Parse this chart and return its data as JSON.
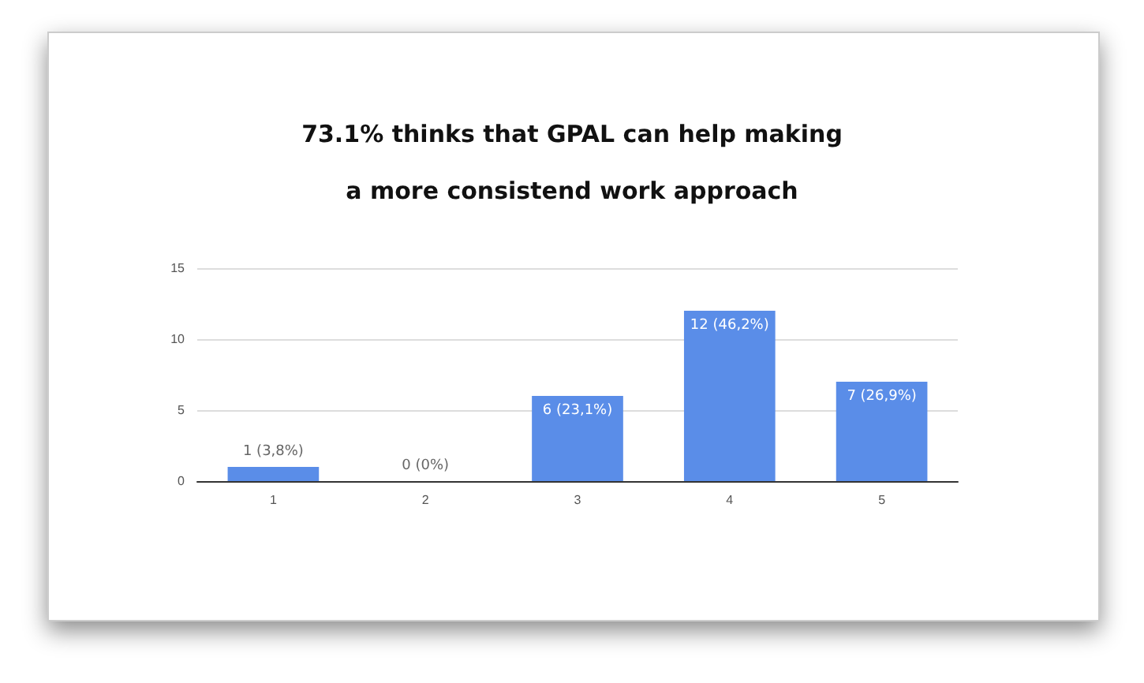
{
  "chart_data": {
    "type": "bar",
    "title": "73.1% thinks that GPAL can help making\na more consistend work approach",
    "categories": [
      "1",
      "2",
      "3",
      "4",
      "5"
    ],
    "values": [
      1,
      0,
      6,
      12,
      7
    ],
    "value_labels": [
      "1 (3,8%)",
      "0 (0%)",
      "6 (23,1%)",
      "12 (46,2%)",
      "7 (26,9%)"
    ],
    "color": "#5a8de8",
    "ylim": [
      0,
      15
    ],
    "yticks": [
      0,
      5,
      10,
      15
    ],
    "grid": "y"
  }
}
